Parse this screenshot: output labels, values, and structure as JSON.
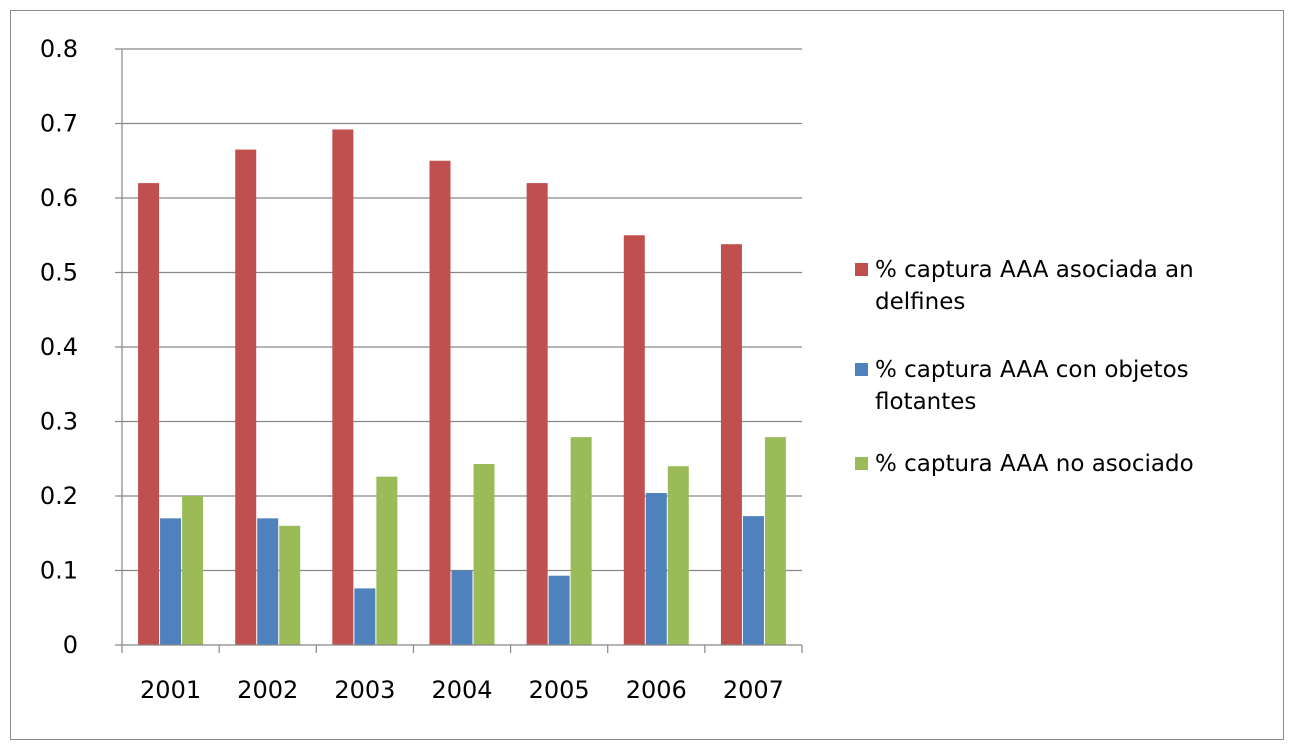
{
  "chart_data": {
    "type": "bar",
    "categories": [
      "2001",
      "2002",
      "2003",
      "2004",
      "2005",
      "2006",
      "2007"
    ],
    "series": [
      {
        "name": "% captura AAA asociada an delfines",
        "color": "#C0504D",
        "values": [
          0.62,
          0.665,
          0.692,
          0.65,
          0.62,
          0.55,
          0.538
        ]
      },
      {
        "name": "% captura AAA con objetos flotantes",
        "color": "#4F81BD",
        "values": [
          0.17,
          0.17,
          0.076,
          0.1,
          0.093,
          0.204,
          0.173
        ]
      },
      {
        "name": "% captura AAA no asociado",
        "color": "#9BBB59",
        "values": [
          0.2,
          0.16,
          0.226,
          0.243,
          0.279,
          0.24,
          0.279
        ]
      }
    ],
    "yticks": [
      "0",
      "0.1",
      "0.2",
      "0.3",
      "0.4",
      "0.5",
      "0.6",
      "0.7",
      "0.8"
    ],
    "ylim": [
      0,
      0.8
    ],
    "grid": true,
    "legend_position": "right"
  }
}
